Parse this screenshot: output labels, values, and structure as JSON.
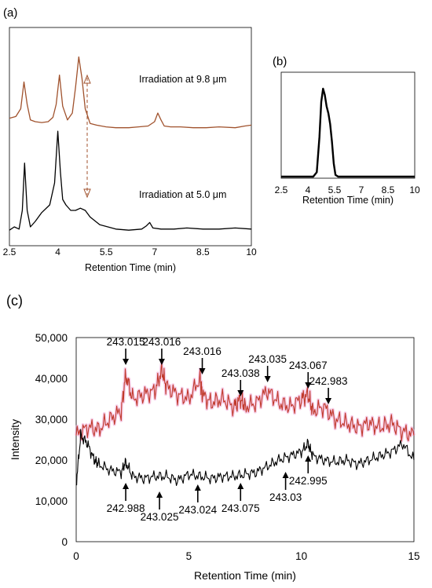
{
  "panels": {
    "a": {
      "label": "(a)"
    },
    "b": {
      "label": "(b)"
    },
    "c": {
      "label": "(c)"
    }
  },
  "chart_data": [
    {
      "panel": "a",
      "type": "line",
      "xlabel": "Retention Time (min)",
      "xlim": [
        2.5,
        10
      ],
      "xticks": [
        "2.5",
        "4",
        "5.5",
        "7",
        "8.5",
        "10"
      ],
      "series": [
        {
          "name": "Irradiation at 9.8 μm",
          "color": "#a0522d",
          "x": [
            2.5,
            2.7,
            2.85,
            2.95,
            3.05,
            3.15,
            3.3,
            3.5,
            3.7,
            3.85,
            3.95,
            4.05,
            4.15,
            4.3,
            4.45,
            4.55,
            4.65,
            4.75,
            4.85,
            5.0,
            5.2,
            5.5,
            5.8,
            6.2,
            6.5,
            6.8,
            7.0,
            7.1,
            7.2,
            7.3,
            7.5,
            7.8,
            8.2,
            8.6,
            9.0,
            9.5,
            9.8,
            10.0
          ],
          "y": [
            0.14,
            0.16,
            0.25,
            0.56,
            0.3,
            0.12,
            0.1,
            0.09,
            0.1,
            0.15,
            0.3,
            0.64,
            0.28,
            0.12,
            0.2,
            0.5,
            0.85,
            0.6,
            0.25,
            0.08,
            0.06,
            0.04,
            0.03,
            0.03,
            0.04,
            0.05,
            0.1,
            0.2,
            0.12,
            0.05,
            0.04,
            0.04,
            0.03,
            0.03,
            0.04,
            0.03,
            0.05,
            0.06
          ]
        },
        {
          "name": "Irradiation at 5.0 μm",
          "color": "#000000",
          "x": [
            2.5,
            2.65,
            2.8,
            2.9,
            2.97,
            3.05,
            3.15,
            3.3,
            3.5,
            3.75,
            3.9,
            4.0,
            4.08,
            4.15,
            4.25,
            4.4,
            4.55,
            4.7,
            4.85,
            5.0,
            5.3,
            5.8,
            6.2,
            6.6,
            6.75,
            6.85,
            6.95,
            7.2,
            7.6,
            8.0,
            8.5,
            9.0,
            9.5,
            10.0
          ],
          "y": [
            0.02,
            0.05,
            0.03,
            0.2,
            0.63,
            0.2,
            0.05,
            0.1,
            0.18,
            0.25,
            0.45,
            0.92,
            0.55,
            0.3,
            0.25,
            0.2,
            0.2,
            0.22,
            0.2,
            0.14,
            0.07,
            0.03,
            0.02,
            0.03,
            0.06,
            0.09,
            0.04,
            0.03,
            0.03,
            0.04,
            0.03,
            0.03,
            0.04,
            0.03
          ]
        }
      ],
      "annotations": [
        "Irradiation at 9.8 μm",
        "Irradiation at 5.0 μm"
      ]
    },
    {
      "panel": "b",
      "type": "line",
      "xlabel": "Retention Time (min)",
      "xlim": [
        2.5,
        10
      ],
      "xticks": [
        "2.5",
        "4",
        "5.5",
        "7",
        "8.5",
        "10"
      ],
      "series": [
        {
          "color": "#000000",
          "x": [
            2.5,
            4.3,
            4.5,
            4.65,
            4.75,
            4.85,
            4.95,
            5.05,
            5.15,
            5.25,
            5.35,
            5.45,
            5.55,
            5.7,
            10.0
          ],
          "y": [
            0,
            0,
            0.05,
            0.45,
            0.85,
            1.0,
            0.93,
            0.8,
            0.72,
            0.6,
            0.4,
            0.15,
            0.02,
            0,
            0
          ]
        }
      ]
    },
    {
      "panel": "c",
      "type": "line",
      "xlabel": "Retention Time (min)",
      "ylabel": "Intensity",
      "xlim": [
        0,
        15
      ],
      "ylim": [
        0,
        50000
      ],
      "xticks": [
        "0",
        "5",
        "10",
        "15"
      ],
      "yticks": [
        "0",
        "10,000",
        "20,000",
        "30,000",
        "40,000",
        "50,000"
      ],
      "series": [
        {
          "color": "#c0392b",
          "x": [
            0,
            0.5,
            1.0,
            1.5,
            2.0,
            2.2,
            2.5,
            3.0,
            3.5,
            3.8,
            4.0,
            4.5,
            5.0,
            5.5,
            5.6,
            6.0,
            6.5,
            7.0,
            7.3,
            7.5,
            8.0,
            8.5,
            9.0,
            9.5,
            10.0,
            10.3,
            10.5,
            11.0,
            11.5,
            12.0,
            12.5,
            13.0,
            13.5,
            14.0,
            14.5,
            15.0
          ],
          "y": [
            26000,
            28000,
            27500,
            30000,
            32000,
            41000,
            35000,
            36000,
            37000,
            42000,
            38000,
            36000,
            35000,
            40000,
            36000,
            34000,
            35000,
            33000,
            35000,
            33000,
            34000,
            37000,
            34000,
            33000,
            35000,
            36000,
            32000,
            33000,
            30000,
            29000,
            28000,
            29000,
            28000,
            29000,
            27000,
            26000
          ]
        },
        {
          "color": "#000000",
          "x": [
            0,
            0.2,
            0.5,
            0.8,
            1.0,
            1.5,
            2.0,
            2.2,
            2.5,
            3.0,
            3.5,
            4.0,
            4.5,
            5.0,
            5.5,
            6.0,
            6.5,
            7.0,
            7.5,
            8.0,
            8.5,
            9.0,
            9.5,
            10.0,
            10.3,
            10.5,
            11.0,
            11.5,
            12.0,
            12.5,
            13.0,
            13.5,
            14.0,
            14.5,
            15.0
          ],
          "y": [
            14000,
            26000,
            24000,
            20000,
            19000,
            17500,
            17000,
            19500,
            16000,
            15500,
            16000,
            16000,
            15000,
            16500,
            16000,
            15500,
            16000,
            16000,
            16500,
            17000,
            18500,
            20000,
            21000,
            22000,
            24000,
            21000,
            20000,
            19500,
            20000,
            19000,
            20000,
            21000,
            22000,
            24000,
            20000
          ]
        }
      ],
      "annotations_upper": [
        {
          "text": "243.015",
          "x": 2.2
        },
        {
          "text": "243.016",
          "x": 3.8
        },
        {
          "text": "243.016",
          "x": 5.6
        },
        {
          "text": "243.038",
          "x": 7.3
        },
        {
          "text": "243.035",
          "x": 8.5
        },
        {
          "text": "243.067",
          "x": 10.3
        },
        {
          "text": "242.983",
          "x": 11.2
        }
      ],
      "annotations_lower": [
        {
          "text": "242.988",
          "x": 2.2
        },
        {
          "text": "243.025",
          "x": 3.7
        },
        {
          "text": "243.024",
          "x": 5.4
        },
        {
          "text": "243.075",
          "x": 7.3
        },
        {
          "text": "243.03",
          "x": 9.3
        },
        {
          "text": "242.995",
          "x": 10.3
        }
      ]
    }
  ]
}
